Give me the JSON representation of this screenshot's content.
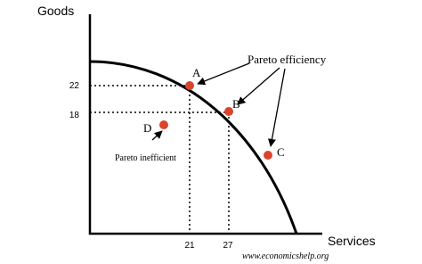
{
  "axes": {
    "y_label": "Goods",
    "x_label": "Services"
  },
  "ticks": {
    "y": [
      22,
      18
    ],
    "x": [
      21,
      27
    ]
  },
  "points": [
    {
      "label": "A"
    },
    {
      "label": "B"
    },
    {
      "label": "C"
    },
    {
      "label": "D"
    }
  ],
  "annotations": {
    "efficiency": "Pareto efficiency",
    "inefficient": "Pareto inefficient"
  },
  "footer": "www.economicshelp.org"
}
